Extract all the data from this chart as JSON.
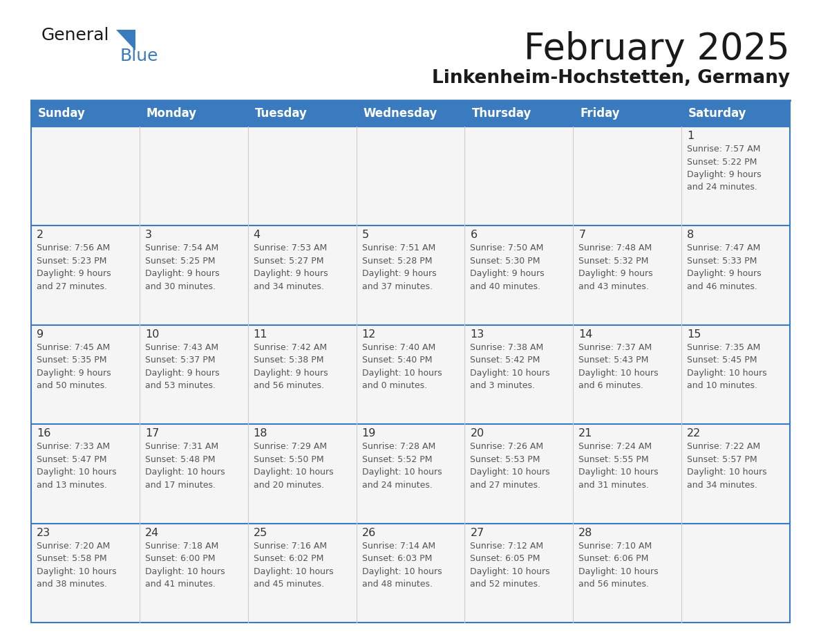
{
  "title": "February 2025",
  "subtitle": "Linkenheim-Hochstetten, Germany",
  "days_of_week": [
    "Sunday",
    "Monday",
    "Tuesday",
    "Wednesday",
    "Thursday",
    "Friday",
    "Saturday"
  ],
  "header_bg": "#3a7bbf",
  "header_text": "#ffffff",
  "cell_bg": "#f5f5f5",
  "border_color": "#3a7bbf",
  "week_line_color": "#3a7bbf",
  "col_line_color": "#cccccc",
  "day_num_color": "#333333",
  "text_color": "#555555",
  "title_color": "#1a1a1a",
  "logo_general_color": "#1a1a1a",
  "logo_blue_color": "#3a7bbf",
  "logo_triangle_color": "#3a7bbf",
  "weeks": [
    [
      {
        "day": null,
        "info": null
      },
      {
        "day": null,
        "info": null
      },
      {
        "day": null,
        "info": null
      },
      {
        "day": null,
        "info": null
      },
      {
        "day": null,
        "info": null
      },
      {
        "day": null,
        "info": null
      },
      {
        "day": "1",
        "info": "Sunrise: 7:57 AM\nSunset: 5:22 PM\nDaylight: 9 hours\nand 24 minutes."
      }
    ],
    [
      {
        "day": "2",
        "info": "Sunrise: 7:56 AM\nSunset: 5:23 PM\nDaylight: 9 hours\nand 27 minutes."
      },
      {
        "day": "3",
        "info": "Sunrise: 7:54 AM\nSunset: 5:25 PM\nDaylight: 9 hours\nand 30 minutes."
      },
      {
        "day": "4",
        "info": "Sunrise: 7:53 AM\nSunset: 5:27 PM\nDaylight: 9 hours\nand 34 minutes."
      },
      {
        "day": "5",
        "info": "Sunrise: 7:51 AM\nSunset: 5:28 PM\nDaylight: 9 hours\nand 37 minutes."
      },
      {
        "day": "6",
        "info": "Sunrise: 7:50 AM\nSunset: 5:30 PM\nDaylight: 9 hours\nand 40 minutes."
      },
      {
        "day": "7",
        "info": "Sunrise: 7:48 AM\nSunset: 5:32 PM\nDaylight: 9 hours\nand 43 minutes."
      },
      {
        "day": "8",
        "info": "Sunrise: 7:47 AM\nSunset: 5:33 PM\nDaylight: 9 hours\nand 46 minutes."
      }
    ],
    [
      {
        "day": "9",
        "info": "Sunrise: 7:45 AM\nSunset: 5:35 PM\nDaylight: 9 hours\nand 50 minutes."
      },
      {
        "day": "10",
        "info": "Sunrise: 7:43 AM\nSunset: 5:37 PM\nDaylight: 9 hours\nand 53 minutes."
      },
      {
        "day": "11",
        "info": "Sunrise: 7:42 AM\nSunset: 5:38 PM\nDaylight: 9 hours\nand 56 minutes."
      },
      {
        "day": "12",
        "info": "Sunrise: 7:40 AM\nSunset: 5:40 PM\nDaylight: 10 hours\nand 0 minutes."
      },
      {
        "day": "13",
        "info": "Sunrise: 7:38 AM\nSunset: 5:42 PM\nDaylight: 10 hours\nand 3 minutes."
      },
      {
        "day": "14",
        "info": "Sunrise: 7:37 AM\nSunset: 5:43 PM\nDaylight: 10 hours\nand 6 minutes."
      },
      {
        "day": "15",
        "info": "Sunrise: 7:35 AM\nSunset: 5:45 PM\nDaylight: 10 hours\nand 10 minutes."
      }
    ],
    [
      {
        "day": "16",
        "info": "Sunrise: 7:33 AM\nSunset: 5:47 PM\nDaylight: 10 hours\nand 13 minutes."
      },
      {
        "day": "17",
        "info": "Sunrise: 7:31 AM\nSunset: 5:48 PM\nDaylight: 10 hours\nand 17 minutes."
      },
      {
        "day": "18",
        "info": "Sunrise: 7:29 AM\nSunset: 5:50 PM\nDaylight: 10 hours\nand 20 minutes."
      },
      {
        "day": "19",
        "info": "Sunrise: 7:28 AM\nSunset: 5:52 PM\nDaylight: 10 hours\nand 24 minutes."
      },
      {
        "day": "20",
        "info": "Sunrise: 7:26 AM\nSunset: 5:53 PM\nDaylight: 10 hours\nand 27 minutes."
      },
      {
        "day": "21",
        "info": "Sunrise: 7:24 AM\nSunset: 5:55 PM\nDaylight: 10 hours\nand 31 minutes."
      },
      {
        "day": "22",
        "info": "Sunrise: 7:22 AM\nSunset: 5:57 PM\nDaylight: 10 hours\nand 34 minutes."
      }
    ],
    [
      {
        "day": "23",
        "info": "Sunrise: 7:20 AM\nSunset: 5:58 PM\nDaylight: 10 hours\nand 38 minutes."
      },
      {
        "day": "24",
        "info": "Sunrise: 7:18 AM\nSunset: 6:00 PM\nDaylight: 10 hours\nand 41 minutes."
      },
      {
        "day": "25",
        "info": "Sunrise: 7:16 AM\nSunset: 6:02 PM\nDaylight: 10 hours\nand 45 minutes."
      },
      {
        "day": "26",
        "info": "Sunrise: 7:14 AM\nSunset: 6:03 PM\nDaylight: 10 hours\nand 48 minutes."
      },
      {
        "day": "27",
        "info": "Sunrise: 7:12 AM\nSunset: 6:05 PM\nDaylight: 10 hours\nand 52 minutes."
      },
      {
        "day": "28",
        "info": "Sunrise: 7:10 AM\nSunset: 6:06 PM\nDaylight: 10 hours\nand 56 minutes."
      },
      {
        "day": null,
        "info": null
      }
    ]
  ]
}
